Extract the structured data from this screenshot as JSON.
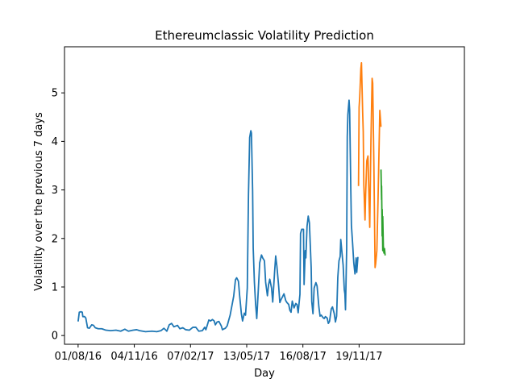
{
  "chart_data": {
    "type": "line",
    "title": "Ethereumclassic Volatility Prediction",
    "xlabel": "Day",
    "ylabel": "Volatility over the previous 7 days",
    "x_range": [
      "2016-07-09",
      "2018-05-16"
    ],
    "xlim": [
      "2016-07-09",
      "2018-05-16"
    ],
    "ylim": [
      -0.18,
      5.95
    ],
    "yticks": [
      0,
      1,
      2,
      3,
      4,
      5
    ],
    "xticks": [
      "2016-08-01",
      "2016-11-04",
      "2017-02-07",
      "2017-05-13",
      "2017-08-16",
      "2017-11-19"
    ],
    "xtick_labels": [
      "01/08/16",
      "04/11/16",
      "07/02/17",
      "13/05/17",
      "16/08/17",
      "19/11/17"
    ],
    "grid": false,
    "legend": "none",
    "series": [
      {
        "color": "#1f77b4",
        "points": [
          [
            "2016-08-01",
            0.29
          ],
          [
            "2016-08-03",
            0.48
          ],
          [
            "2016-08-06",
            0.49
          ],
          [
            "2016-08-08",
            0.48
          ],
          [
            "2016-08-09",
            0.39
          ],
          [
            "2016-08-12",
            0.39
          ],
          [
            "2016-08-14",
            0.36
          ],
          [
            "2016-08-17",
            0.16
          ],
          [
            "2016-08-20",
            0.15
          ],
          [
            "2016-08-24",
            0.22
          ],
          [
            "2016-08-27",
            0.21
          ],
          [
            "2016-08-30",
            0.16
          ],
          [
            "2016-09-04",
            0.14
          ],
          [
            "2016-09-10",
            0.14
          ],
          [
            "2016-09-17",
            0.11
          ],
          [
            "2016-09-25",
            0.1
          ],
          [
            "2016-10-04",
            0.11
          ],
          [
            "2016-10-12",
            0.09
          ],
          [
            "2016-10-19",
            0.13
          ],
          [
            "2016-10-25",
            0.09
          ],
          [
            "2016-11-02",
            0.11
          ],
          [
            "2016-11-08",
            0.12
          ],
          [
            "2016-11-13",
            0.1
          ],
          [
            "2016-11-23",
            0.08
          ],
          [
            "2016-12-04",
            0.09
          ],
          [
            "2016-12-12",
            0.08
          ],
          [
            "2016-12-19",
            0.1
          ],
          [
            "2016-12-24",
            0.15
          ],
          [
            "2016-12-29",
            0.09
          ],
          [
            "2017-01-02",
            0.22
          ],
          [
            "2017-01-06",
            0.25
          ],
          [
            "2017-01-10",
            0.18
          ],
          [
            "2017-01-16",
            0.21
          ],
          [
            "2017-01-20",
            0.14
          ],
          [
            "2017-01-25",
            0.16
          ],
          [
            "2017-01-30",
            0.12
          ],
          [
            "2017-02-05",
            0.11
          ],
          [
            "2017-02-11",
            0.17
          ],
          [
            "2017-02-16",
            0.17
          ],
          [
            "2017-02-21",
            0.09
          ],
          [
            "2017-02-27",
            0.1
          ],
          [
            "2017-03-03",
            0.17
          ],
          [
            "2017-03-05",
            0.12
          ],
          [
            "2017-03-08",
            0.24
          ],
          [
            "2017-03-10",
            0.32
          ],
          [
            "2017-03-13",
            0.3
          ],
          [
            "2017-03-16",
            0.33
          ],
          [
            "2017-03-19",
            0.3
          ],
          [
            "2017-03-21",
            0.22
          ],
          [
            "2017-03-24",
            0.28
          ],
          [
            "2017-03-27",
            0.29
          ],
          [
            "2017-03-31",
            0.2
          ],
          [
            "2017-04-02",
            0.12
          ],
          [
            "2017-04-05",
            0.14
          ],
          [
            "2017-04-07",
            0.15
          ],
          [
            "2017-04-10",
            0.2
          ],
          [
            "2017-04-12",
            0.29
          ],
          [
            "2017-04-15",
            0.42
          ],
          [
            "2017-04-17",
            0.55
          ],
          [
            "2017-04-21",
            0.81
          ],
          [
            "2017-04-24",
            1.15
          ],
          [
            "2017-04-26",
            1.19
          ],
          [
            "2017-04-29",
            1.12
          ],
          [
            "2017-05-01",
            0.83
          ],
          [
            "2017-05-04",
            0.45
          ],
          [
            "2017-05-06",
            0.3
          ],
          [
            "2017-05-09",
            0.46
          ],
          [
            "2017-05-11",
            0.42
          ],
          [
            "2017-05-14",
            0.98
          ],
          [
            "2017-05-16",
            2.9
          ],
          [
            "2017-05-18",
            4.08
          ],
          [
            "2017-05-20",
            4.22
          ],
          [
            "2017-05-21",
            4.17
          ],
          [
            "2017-05-23",
            2.98
          ],
          [
            "2017-05-24",
            1.8
          ],
          [
            "2017-05-26",
            1.1
          ],
          [
            "2017-05-28",
            0.66
          ],
          [
            "2017-05-30",
            0.35
          ],
          [
            "2017-06-01",
            0.8
          ],
          [
            "2017-06-04",
            1.5
          ],
          [
            "2017-06-07",
            1.66
          ],
          [
            "2017-06-09",
            1.6
          ],
          [
            "2017-06-12",
            1.54
          ],
          [
            "2017-06-14",
            1.1
          ],
          [
            "2017-06-17",
            0.82
          ],
          [
            "2017-06-19",
            1.05
          ],
          [
            "2017-06-21",
            1.16
          ],
          [
            "2017-06-24",
            0.98
          ],
          [
            "2017-06-26",
            0.69
          ],
          [
            "2017-06-29",
            1.28
          ],
          [
            "2017-07-01",
            1.64
          ],
          [
            "2017-07-03",
            1.43
          ],
          [
            "2017-07-06",
            1.02
          ],
          [
            "2017-07-08",
            0.68
          ],
          [
            "2017-07-10",
            0.74
          ],
          [
            "2017-07-13",
            0.81
          ],
          [
            "2017-07-15",
            0.86
          ],
          [
            "2017-07-18",
            0.72
          ],
          [
            "2017-07-20",
            0.68
          ],
          [
            "2017-07-23",
            0.64
          ],
          [
            "2017-07-25",
            0.52
          ],
          [
            "2017-07-27",
            0.48
          ],
          [
            "2017-07-29",
            0.71
          ],
          [
            "2017-08-01",
            0.57
          ],
          [
            "2017-08-04",
            0.66
          ],
          [
            "2017-08-06",
            0.64
          ],
          [
            "2017-08-08",
            0.47
          ],
          [
            "2017-08-11",
            0.85
          ],
          [
            "2017-08-12",
            2.1
          ],
          [
            "2017-08-14",
            2.19
          ],
          [
            "2017-08-17",
            2.19
          ],
          [
            "2017-08-18",
            1.05
          ],
          [
            "2017-08-20",
            1.75
          ],
          [
            "2017-08-21",
            1.6
          ],
          [
            "2017-08-23",
            2.25
          ],
          [
            "2017-08-25",
            2.46
          ],
          [
            "2017-08-27",
            2.32
          ],
          [
            "2017-08-30",
            1.4
          ],
          [
            "2017-08-31",
            0.7
          ],
          [
            "2017-09-02",
            0.45
          ],
          [
            "2017-09-04",
            0.98
          ],
          [
            "2017-09-07",
            1.09
          ],
          [
            "2017-09-09",
            1.02
          ],
          [
            "2017-09-12",
            0.59
          ],
          [
            "2017-09-14",
            0.4
          ],
          [
            "2017-09-16",
            0.42
          ],
          [
            "2017-09-19",
            0.37
          ],
          [
            "2017-09-21",
            0.35
          ],
          [
            "2017-09-23",
            0.39
          ],
          [
            "2017-09-26",
            0.36
          ],
          [
            "2017-09-28",
            0.25
          ],
          [
            "2017-09-30",
            0.29
          ],
          [
            "2017-10-03",
            0.55
          ],
          [
            "2017-10-05",
            0.59
          ],
          [
            "2017-10-08",
            0.45
          ],
          [
            "2017-10-10",
            0.28
          ],
          [
            "2017-10-12",
            0.4
          ],
          [
            "2017-10-14",
            1.2
          ],
          [
            "2017-10-16",
            1.54
          ],
          [
            "2017-10-18",
            1.63
          ],
          [
            "2017-10-19",
            1.98
          ],
          [
            "2017-10-21",
            1.71
          ],
          [
            "2017-10-23",
            1.45
          ],
          [
            "2017-10-25",
            0.94
          ],
          [
            "2017-10-26",
            0.86
          ],
          [
            "2017-10-27",
            0.53
          ],
          [
            "2017-10-29",
            1.8
          ],
          [
            "2017-10-30",
            4.1
          ],
          [
            "2017-10-31",
            4.55
          ],
          [
            "2017-11-02",
            4.85
          ],
          [
            "2017-11-03",
            4.65
          ],
          [
            "2017-11-05",
            3.0
          ],
          [
            "2017-11-06",
            2.27
          ],
          [
            "2017-11-08",
            1.9
          ],
          [
            "2017-11-10",
            1.5
          ],
          [
            "2017-11-12",
            1.27
          ],
          [
            "2017-11-14",
            1.6
          ],
          [
            "2017-11-15",
            1.3
          ],
          [
            "2017-11-17",
            1.62
          ]
        ]
      },
      {
        "color": "#ff7f0e",
        "points": [
          [
            "2017-11-18",
            3.08
          ],
          [
            "2017-11-19",
            4.7
          ],
          [
            "2017-11-20",
            4.9
          ],
          [
            "2017-11-22",
            5.5
          ],
          [
            "2017-11-23",
            5.62
          ],
          [
            "2017-11-25",
            4.6
          ],
          [
            "2017-11-26",
            4.2
          ],
          [
            "2017-11-27",
            3.1
          ],
          [
            "2017-11-29",
            2.38
          ],
          [
            "2017-11-30",
            2.9
          ],
          [
            "2017-12-02",
            3.6
          ],
          [
            "2017-12-04",
            3.7
          ],
          [
            "2017-12-05",
            3.2
          ],
          [
            "2017-12-07",
            2.23
          ],
          [
            "2017-12-09",
            4.0
          ],
          [
            "2017-12-11",
            5.3
          ],
          [
            "2017-12-12",
            5.2
          ],
          [
            "2017-12-14",
            3.5
          ],
          [
            "2017-12-16",
            1.4
          ],
          [
            "2017-12-17",
            1.48
          ],
          [
            "2017-12-19",
            1.75
          ],
          [
            "2017-12-21",
            2.8
          ],
          [
            "2017-12-24",
            4.64
          ],
          [
            "2017-12-26",
            4.3
          ]
        ]
      },
      {
        "color": "#2ca02c",
        "points": [
          [
            "2017-12-26",
            3.42
          ],
          [
            "2017-12-27",
            2.8
          ],
          [
            "2017-12-27",
            3.08
          ],
          [
            "2017-12-28",
            2.05
          ],
          [
            "2017-12-28",
            2.6
          ],
          [
            "2017-12-29",
            1.75
          ],
          [
            "2017-12-29",
            2.45
          ],
          [
            "2017-12-30",
            1.85
          ],
          [
            "2017-12-31",
            1.7
          ],
          [
            "2018-01-01",
            1.79
          ],
          [
            "2018-01-02",
            1.65
          ]
        ]
      }
    ]
  }
}
